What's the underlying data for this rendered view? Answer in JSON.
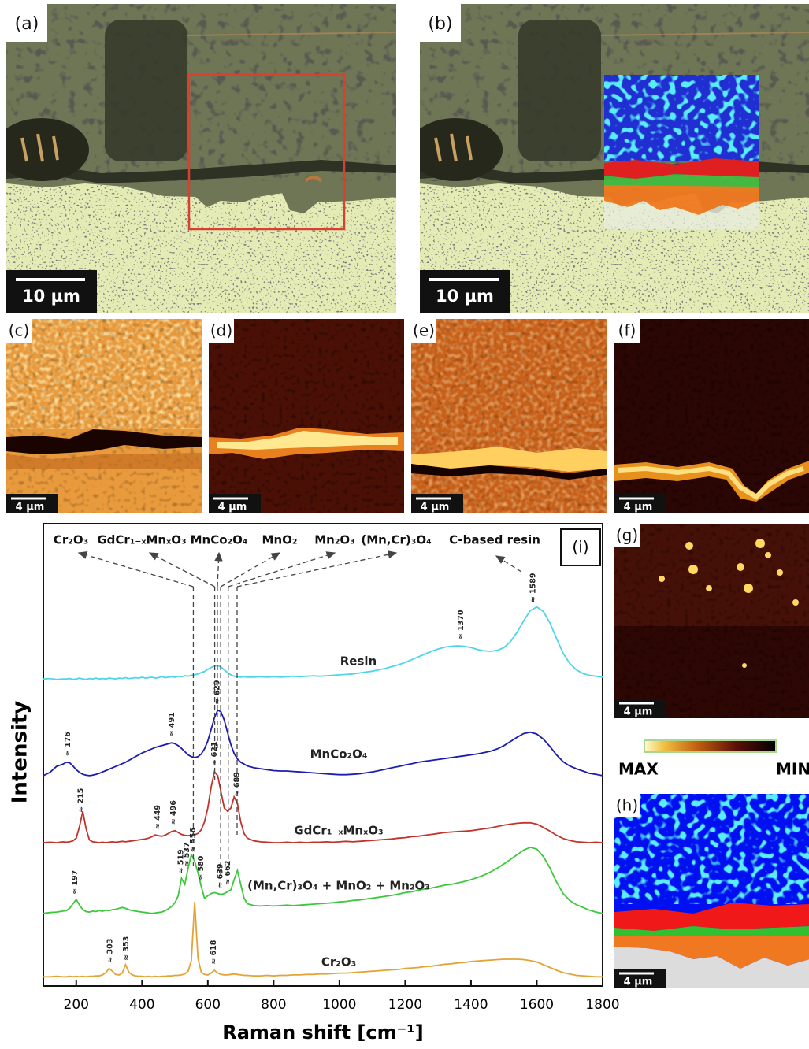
{
  "panels": [
    {
      "label": "(a)",
      "scale_bar": "10 μm"
    },
    {
      "label": "(b)",
      "scale_bar": "10 μm"
    },
    {
      "label": "(c)",
      "scale_bar": "4 μm"
    },
    {
      "label": "(d)",
      "scale_bar": "4 μm"
    },
    {
      "label": "(e)",
      "scale_bar": "4 μm"
    },
    {
      "label": "(f)",
      "scale_bar": "4 μm"
    },
    {
      "label": "(g)",
      "scale_bar": "4 μm"
    },
    {
      "label": "(h)",
      "scale_bar": "4 μm"
    }
  ],
  "colorbar": {
    "max_label": "MAX",
    "min_label": "MIN"
  },
  "chart_data": {
    "type": "line",
    "panel_label": "(i)",
    "xlabel": "Raman shift [cm⁻¹]",
    "ylabel": "Intensity",
    "xlim": [
      100,
      1800
    ],
    "xticks": [
      200,
      400,
      600,
      800,
      1000,
      1200,
      1400,
      1600,
      1800
    ],
    "ylim": [
      0,
      100
    ],
    "x": [
      100,
      120,
      140,
      160,
      170,
      180,
      190,
      200,
      210,
      220,
      230,
      240,
      250,
      260,
      270,
      280,
      290,
      300,
      310,
      320,
      330,
      340,
      350,
      360,
      370,
      380,
      390,
      400,
      410,
      420,
      430,
      440,
      450,
      460,
      470,
      480,
      490,
      500,
      510,
      520,
      530,
      540,
      550,
      560,
      570,
      580,
      590,
      600,
      610,
      620,
      630,
      640,
      650,
      660,
      670,
      680,
      690,
      700,
      710,
      720,
      740,
      760,
      780,
      800,
      820,
      840,
      860,
      880,
      900,
      920,
      940,
      960,
      980,
      1000,
      1020,
      1040,
      1060,
      1080,
      1100,
      1120,
      1140,
      1160,
      1180,
      1200,
      1220,
      1240,
      1260,
      1280,
      1300,
      1320,
      1340,
      1360,
      1380,
      1400,
      1420,
      1440,
      1460,
      1480,
      1500,
      1520,
      1540,
      1560,
      1580,
      1600,
      1620,
      1640,
      1660,
      1680,
      1700,
      1720,
      1740,
      1760,
      1780,
      1800
    ],
    "series": [
      {
        "name": "Resin",
        "color": "#4cd6e8",
        "values": [
          66.4,
          66.5,
          66.3,
          66.4,
          66.4,
          66.5,
          66.3,
          66.4,
          66.6,
          66.4,
          66.3,
          66.5,
          66.4,
          66.6,
          66.4,
          66.5,
          66.4,
          66.6,
          66.5,
          66.4,
          66.6,
          66.5,
          66.7,
          66.5,
          66.6,
          66.7,
          66.6,
          66.8,
          66.6,
          66.7,
          66.8,
          66.6,
          66.7,
          66.9,
          66.7,
          66.8,
          66.9,
          66.8,
          67.0,
          66.9,
          67.1,
          67.0,
          67.2,
          67.3,
          67.5,
          67.8,
          68.0,
          68.5,
          68.9,
          69.2,
          69.3,
          69.0,
          68.4,
          67.8,
          67.3,
          67.0,
          66.9,
          66.8,
          66.9,
          66.8,
          66.8,
          66.9,
          66.8,
          66.9,
          66.8,
          66.9,
          67.0,
          66.9,
          67.0,
          67.1,
          67.0,
          67.1,
          67.2,
          67.3,
          67.4,
          67.5,
          67.7,
          67.9,
          68.1,
          68.4,
          68.7,
          69.1,
          69.5,
          70.0,
          70.6,
          71.2,
          71.8,
          72.4,
          72.9,
          73.3,
          73.5,
          73.6,
          73.5,
          73.2,
          72.8,
          72.5,
          72.4,
          72.6,
          73.2,
          74.5,
          76.5,
          79.0,
          81.2,
          82.0,
          81.0,
          78.5,
          75.2,
          72.0,
          69.8,
          68.4,
          67.6,
          67.2,
          67.0,
          66.8
        ],
        "peak_labels": [
          {
            "x": 1370,
            "label": "≈ 1370"
          },
          {
            "x": 1589,
            "label": "≈ 1589"
          }
        ]
      },
      {
        "name": "MnCo₂O₄",
        "color": "#1c1cb0",
        "values": [
          45.5,
          46.2,
          47.5,
          48.0,
          48.4,
          48.3,
          47.6,
          46.8,
          46.2,
          45.8,
          45.6,
          45.5,
          45.6,
          45.8,
          46.0,
          46.3,
          46.6,
          46.9,
          47.2,
          47.5,
          47.8,
          48.1,
          48.4,
          48.8,
          49.2,
          49.6,
          50.0,
          50.4,
          50.7,
          51.0,
          51.3,
          51.6,
          51.8,
          52.0,
          52.2,
          52.4,
          52.6,
          52.4,
          52.0,
          51.4,
          50.7,
          50.0,
          49.6,
          49.4,
          49.6,
          50.2,
          51.3,
          53.0,
          55.5,
          58.0,
          59.7,
          59.3,
          57.5,
          54.8,
          52.2,
          50.3,
          49.1,
          48.4,
          48.0,
          47.6,
          47.2,
          47.0,
          46.8,
          46.6,
          46.5,
          46.5,
          46.4,
          46.3,
          46.2,
          46.1,
          46.0,
          45.9,
          45.8,
          45.7,
          45.7,
          45.8,
          45.9,
          46.1,
          46.3,
          46.6,
          46.9,
          47.2,
          47.5,
          47.8,
          48.1,
          48.4,
          48.6,
          48.8,
          49.0,
          49.2,
          49.4,
          49.6,
          49.8,
          50.0,
          50.2,
          50.5,
          50.8,
          51.3,
          52.0,
          52.9,
          53.8,
          54.6,
          54.9,
          54.5,
          53.4,
          51.8,
          50.0,
          48.5,
          47.6,
          47.0,
          46.5,
          46.0,
          45.8,
          45.5
        ],
        "peak_labels": [
          {
            "x": 176,
            "label": "≈ 176"
          },
          {
            "x": 491,
            "label": "≈ 491"
          },
          {
            "x": 629,
            "label": "≈ 629"
          }
        ]
      },
      {
        "name": "GdCr₁₋ₓMnₓO₃",
        "color": "#c0342c",
        "values": [
          31.0,
          31.1,
          31.0,
          31.2,
          31.1,
          31.2,
          31.4,
          32.0,
          34.5,
          37.8,
          34.0,
          31.6,
          31.2,
          31.1,
          31.0,
          31.1,
          31.0,
          31.1,
          31.2,
          31.1,
          31.2,
          31.3,
          31.2,
          31.3,
          31.4,
          31.5,
          31.6,
          31.7,
          31.8,
          32.0,
          32.3,
          32.7,
          32.5,
          32.4,
          32.6,
          33.0,
          33.4,
          33.6,
          33.2,
          32.8,
          32.6,
          32.5,
          32.6,
          32.7,
          33.0,
          33.8,
          35.5,
          38.5,
          43.0,
          46.3,
          45.5,
          42.0,
          38.5,
          37.8,
          38.5,
          40.9,
          39.5,
          35.5,
          33.0,
          32.0,
          31.4,
          31.2,
          31.1,
          31.0,
          31.0,
          31.1,
          31.0,
          31.1,
          31.0,
          31.1,
          31.1,
          31.2,
          31.1,
          31.2,
          31.3,
          31.2,
          31.3,
          31.4,
          31.5,
          31.6,
          31.7,
          31.8,
          32.0,
          32.1,
          32.3,
          32.4,
          32.6,
          32.8,
          33.0,
          33.2,
          33.3,
          33.4,
          33.5,
          33.6,
          33.8,
          34.0,
          34.2,
          34.5,
          34.8,
          35.0,
          35.2,
          35.3,
          35.3,
          35.0,
          34.3,
          33.5,
          32.6,
          31.9,
          31.5,
          31.2,
          31.1,
          31.0,
          31.1,
          31.0
        ],
        "peak_labels": [
          {
            "x": 215,
            "label": "≈ 215"
          },
          {
            "x": 449,
            "label": "≈ 449"
          },
          {
            "x": 496,
            "label": "≈ 496"
          },
          {
            "x": 621,
            "label": "≈ 621"
          },
          {
            "x": 689,
            "label": "≈ 689"
          }
        ]
      },
      {
        "name": "(Mn,Cr)₃O₄ + MnO₂ + Mn₂O₃",
        "color": "#3cc83c",
        "values": [
          15.7,
          15.9,
          16.0,
          16.2,
          16.3,
          16.8,
          17.8,
          18.7,
          17.5,
          16.5,
          16.1,
          16.0,
          16.2,
          16.1,
          16.3,
          16.2,
          16.4,
          16.3,
          16.5,
          16.6,
          16.8,
          17.0,
          16.8,
          16.5,
          16.3,
          16.2,
          16.1,
          16.0,
          15.9,
          15.8,
          15.7,
          15.8,
          15.9,
          16.0,
          16.3,
          16.7,
          17.2,
          18.0,
          19.5,
          23.3,
          22.0,
          25.5,
          28.4,
          27.0,
          24.5,
          21.5,
          19.0,
          19.5,
          20.0,
          20.2,
          20.0,
          19.8,
          20.0,
          20.4,
          20.8,
          23.0,
          25.0,
          22.0,
          19.0,
          17.8,
          17.4,
          17.3,
          17.4,
          17.3,
          17.4,
          17.5,
          17.4,
          17.5,
          17.6,
          17.7,
          17.8,
          17.9,
          18.0,
          18.2,
          18.3,
          18.5,
          18.6,
          18.8,
          19.0,
          19.2,
          19.4,
          19.6,
          19.9,
          20.2,
          20.4,
          20.7,
          21.0,
          21.2,
          21.5,
          21.8,
          22.0,
          22.3,
          22.6,
          23.0,
          23.5,
          24.0,
          24.7,
          25.5,
          26.4,
          27.4,
          28.4,
          29.4,
          30.0,
          29.6,
          28.0,
          25.5,
          22.5,
          20.0,
          18.5,
          17.6,
          17.0,
          16.4,
          16.0,
          15.7
        ],
        "peak_labels": [
          {
            "x": 197,
            "label": "≈ 197"
          },
          {
            "x": 519,
            "label": "≈ 519"
          },
          {
            "x": 537,
            "label": "≈ 537"
          },
          {
            "x": 556,
            "label": "≈ 556"
          },
          {
            "x": 580,
            "label": "≈ 580"
          },
          {
            "x": 639,
            "label": "≈ 639"
          },
          {
            "x": 662,
            "label": "≈ 662"
          }
        ]
      },
      {
        "name": "Cr₂O₃",
        "color": "#e2a436",
        "values": [
          2.0,
          2.0,
          2.1,
          2.0,
          2.0,
          2.1,
          2.0,
          2.1,
          2.0,
          2.1,
          2.0,
          2.1,
          2.1,
          2.2,
          2.2,
          2.4,
          2.9,
          3.8,
          3.2,
          2.5,
          2.4,
          2.8,
          4.6,
          3.0,
          2.4,
          2.2,
          2.1,
          2.1,
          2.0,
          2.1,
          2.0,
          2.1,
          2.0,
          2.1,
          2.1,
          2.2,
          2.2,
          2.3,
          2.3,
          2.4,
          2.6,
          3.2,
          5.5,
          18.2,
          6.0,
          3.0,
          2.5,
          2.4,
          2.8,
          3.4,
          2.8,
          2.5,
          2.4,
          2.4,
          2.5,
          2.6,
          2.5,
          2.4,
          2.3,
          2.3,
          2.2,
          2.2,
          2.3,
          2.2,
          2.3,
          2.3,
          2.4,
          2.4,
          2.5,
          2.5,
          2.6,
          2.6,
          2.7,
          2.8,
          2.8,
          2.9,
          3.0,
          3.1,
          3.2,
          3.3,
          3.4,
          3.5,
          3.6,
          3.8,
          3.9,
          4.0,
          4.2,
          4.3,
          4.5,
          4.7,
          4.8,
          5.0,
          5.1,
          5.3,
          5.4,
          5.5,
          5.6,
          5.7,
          5.8,
          5.8,
          5.8,
          5.7,
          5.5,
          5.2,
          4.6,
          4.0,
          3.4,
          2.9,
          2.6,
          2.3,
          2.2,
          2.1,
          2.0,
          2.0
        ],
        "peak_labels": [
          {
            "x": 303,
            "label": "≈ 303"
          },
          {
            "x": 353,
            "label": "≈ 353"
          },
          {
            "x": 618,
            "label": "≈ 618"
          }
        ]
      }
    ],
    "phase_labels": [
      {
        "label": "Cr₂O₃",
        "x": 556
      },
      {
        "label": "GdCr₁₋ₓMnₓO₃",
        "x": 621
      },
      {
        "label": "MnCo₂O₄",
        "x": 629
      },
      {
        "label": "MnO₂",
        "x": 639
      },
      {
        "label": "Mn₂O₃",
        "x": 662
      },
      {
        "label": "(Mn,Cr)₃O₄",
        "x": 689
      },
      {
        "label": "C-based resin",
        "x": 1589
      }
    ]
  }
}
